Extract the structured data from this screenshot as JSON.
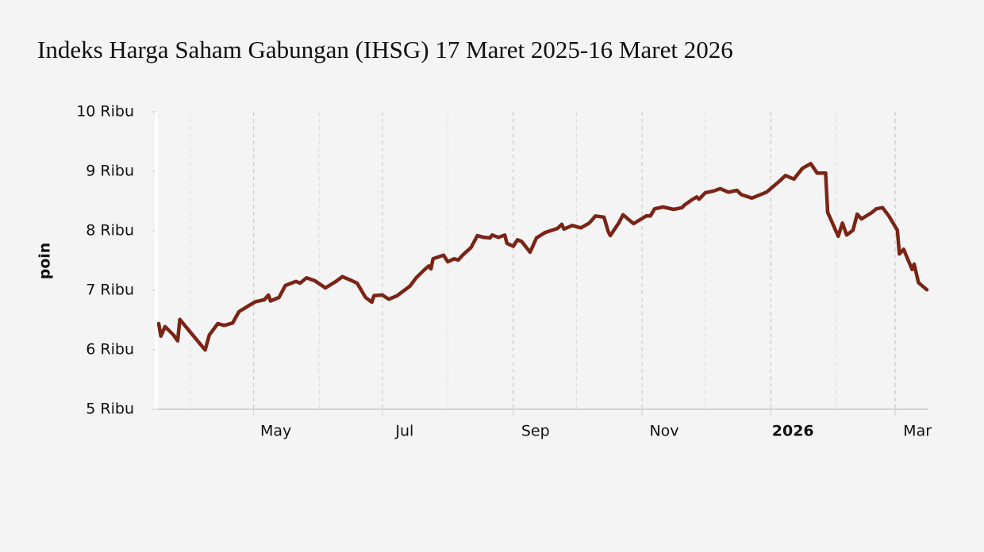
{
  "chart_data": {
    "type": "line",
    "title": "Indeks Harga Saham Gabungan (IHSG) 17 Maret 2025-16 Maret 2026",
    "y_label": "poin",
    "xlim": [
      "2025-03-17",
      "2026-03-16"
    ],
    "ylim": [
      5000,
      10000
    ],
    "yticks": [
      {
        "value": 5000,
        "label": "5 Ribu"
      },
      {
        "value": 6000,
        "label": "6 Ribu"
      },
      {
        "value": 7000,
        "label": "7 Ribu"
      },
      {
        "value": 8000,
        "label": "8 Ribu"
      },
      {
        "value": 9000,
        "label": "9 Ribu"
      },
      {
        "value": 10000,
        "label": "10 Ribu"
      }
    ],
    "xticks": [
      {
        "value": "2025-05-01",
        "label": "May"
      },
      {
        "value": "2025-07-01",
        "label": "Jul"
      },
      {
        "value": "2025-09-01",
        "label": "Sep"
      },
      {
        "value": "2025-11-01",
        "label": "Nov"
      },
      {
        "value": "2026-01-01",
        "label": "2026",
        "bold": true
      },
      {
        "value": "2026-03-01",
        "label": "Mar"
      }
    ],
    "xminorticks": [
      "2025-04-01",
      "2025-06-01",
      "2025-08-01",
      "2025-10-01",
      "2025-12-01",
      "2026-02-01"
    ],
    "grid": true,
    "x": [
      "2025-03-17",
      "2025-03-18",
      "2025-03-20",
      "2025-03-24",
      "2025-03-26",
      "2025-03-27",
      "2025-04-08",
      "2025-04-10",
      "2025-04-14",
      "2025-04-17",
      "2025-04-21",
      "2025-04-24",
      "2025-04-29",
      "2025-05-02",
      "2025-05-06",
      "2025-05-08",
      "2025-05-09",
      "2025-05-13",
      "2025-05-16",
      "2025-05-21",
      "2025-05-23",
      "2025-05-26",
      "2025-05-30",
      "2025-06-04",
      "2025-06-09",
      "2025-06-12",
      "2025-06-16",
      "2025-06-19",
      "2025-06-23",
      "2025-06-26",
      "2025-06-27",
      "2025-07-01",
      "2025-07-04",
      "2025-07-08",
      "2025-07-14",
      "2025-07-17",
      "2025-07-21",
      "2025-07-23",
      "2025-07-24",
      "2025-07-25",
      "2025-07-30",
      "2025-08-01",
      "2025-08-04",
      "2025-08-06",
      "2025-08-08",
      "2025-08-12",
      "2025-08-15",
      "2025-08-18",
      "2025-08-21",
      "2025-08-22",
      "2025-08-25",
      "2025-08-28",
      "2025-08-29",
      "2025-09-01",
      "2025-09-03",
      "2025-09-05",
      "2025-09-09",
      "2025-09-12",
      "2025-09-16",
      "2025-09-22",
      "2025-09-24",
      "2025-09-25",
      "2025-09-29",
      "2025-10-03",
      "2025-10-07",
      "2025-10-10",
      "2025-10-14",
      "2025-10-16",
      "2025-10-17",
      "2025-10-21",
      "2025-10-23",
      "2025-10-28",
      "2025-11-03",
      "2025-11-05",
      "2025-11-07",
      "2025-11-11",
      "2025-11-16",
      "2025-11-20",
      "2025-11-21",
      "2025-11-25",
      "2025-11-27",
      "2025-11-28",
      "2025-12-01",
      "2025-12-05",
      "2025-12-08",
      "2025-12-12",
      "2025-12-16",
      "2025-12-18",
      "2025-12-23",
      "2025-12-30",
      "2026-01-05",
      "2026-01-08",
      "2026-01-12",
      "2026-01-16",
      "2026-01-20",
      "2026-01-23",
      "2026-01-27",
      "2026-01-28",
      "2026-01-29",
      "2026-02-02",
      "2026-02-04",
      "2026-02-06",
      "2026-02-09",
      "2026-02-11",
      "2026-02-13",
      "2026-02-18",
      "2026-02-20",
      "2026-02-23",
      "2026-02-26",
      "2026-03-02",
      "2026-03-03",
      "2026-03-05",
      "2026-03-09",
      "2026-03-10",
      "2026-03-12",
      "2026-03-16"
    ],
    "series": [
      {
        "name": "IHSG",
        "color": "#7a2416",
        "values": [
          6440,
          6230,
          6390,
          6250,
          6150,
          6510,
          5996,
          6250,
          6440,
          6410,
          6450,
          6640,
          6750,
          6810,
          6840,
          6920,
          6820,
          6880,
          7080,
          7150,
          7120,
          7210,
          7160,
          7040,
          7150,
          7230,
          7170,
          7120,
          6880,
          6800,
          6910,
          6920,
          6850,
          6910,
          7070,
          7210,
          7350,
          7410,
          7360,
          7530,
          7590,
          7480,
          7530,
          7510,
          7590,
          7720,
          7920,
          7890,
          7880,
          7930,
          7890,
          7930,
          7790,
          7740,
          7850,
          7820,
          7640,
          7880,
          7970,
          8040,
          8110,
          8030,
          8090,
          8050,
          8130,
          8250,
          8230,
          7990,
          7920,
          8130,
          8270,
          8120,
          8250,
          8250,
          8370,
          8400,
          8360,
          8390,
          8430,
          8530,
          8570,
          8530,
          8640,
          8670,
          8710,
          8650,
          8680,
          8610,
          8550,
          8650,
          8830,
          8930,
          8870,
          9050,
          9130,
          8970,
          8970,
          8310,
          8230,
          7910,
          8130,
          7930,
          8010,
          8280,
          8200,
          8310,
          8370,
          8390,
          8250,
          8010,
          7610,
          7690,
          7350,
          7440,
          7130,
          7010
        ]
      }
    ]
  }
}
